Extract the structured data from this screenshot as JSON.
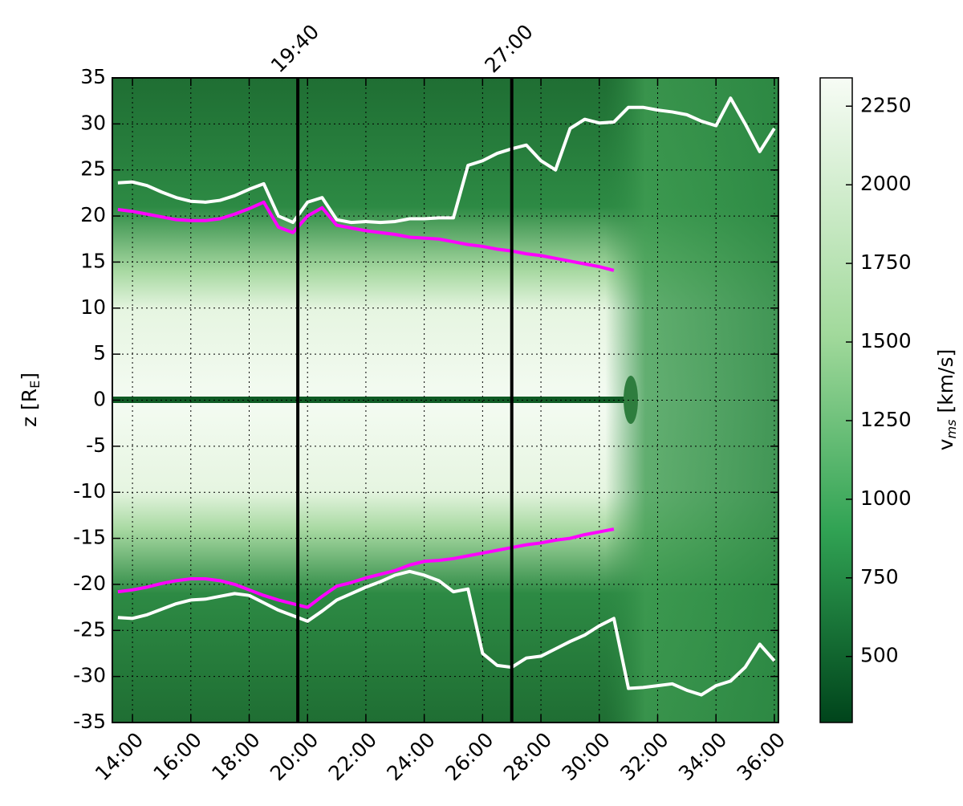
{
  "chart_data": {
    "type": "line",
    "ylabel": {
      "text": "z [R",
      "sub": "E",
      "end": "]"
    },
    "x": [
      13.5,
      14,
      14.5,
      15,
      15.5,
      16,
      16.5,
      17,
      17.5,
      18,
      18.5,
      19,
      19.5,
      20,
      20.5,
      21,
      21.5,
      22,
      22.5,
      23,
      23.5,
      24,
      24.5,
      25,
      25.5,
      26,
      26.5,
      27,
      27.5,
      28,
      28.5,
      29,
      29.5,
      30,
      30.5,
      31,
      31.5,
      32,
      32.5,
      33,
      33.5,
      34,
      34.5,
      35,
      35.5,
      36
    ],
    "series": [
      {
        "color": "#ffffff",
        "values": [
          23.6,
          23.7,
          23.3,
          22.6,
          22.0,
          21.6,
          21.5,
          21.7,
          22.2,
          22.9,
          23.5,
          20.0,
          19.3,
          21.5,
          22.0,
          19.6,
          19.3,
          19.4,
          19.3,
          19.4,
          19.7,
          19.7,
          19.8,
          19.8,
          25.5,
          26.0,
          26.8,
          27.3,
          27.7,
          26.0,
          25.0,
          29.5,
          30.5,
          30.1,
          30.2,
          31.8,
          31.8,
          31.5,
          31.3,
          31.0,
          30.3,
          29.8,
          32.8,
          30.0,
          27.0,
          29.5
        ]
      },
      {
        "color": "#ff00ff",
        "values": [
          20.7,
          20.5,
          20.2,
          19.9,
          19.6,
          19.5,
          19.5,
          19.7,
          20.2,
          20.8,
          21.5,
          18.8,
          18.2,
          20.0,
          20.9,
          19.0,
          18.7,
          18.4,
          18.2,
          18.0,
          17.7,
          17.6,
          17.5,
          17.2,
          16.9,
          16.7,
          16.4,
          16.2,
          15.9,
          15.7,
          15.4,
          15.1,
          14.8,
          14.5,
          14.1,
          null,
          null,
          null,
          null,
          null,
          null,
          null,
          null,
          null,
          null,
          null
        ]
      },
      {
        "color": "#ff00ff",
        "values": [
          -20.8,
          -20.6,
          -20.3,
          -19.9,
          -19.6,
          -19.4,
          -19.4,
          -19.6,
          -20.0,
          -20.6,
          -21.2,
          -21.7,
          -22.1,
          -22.5,
          -21.3,
          -20.2,
          -19.8,
          -19.3,
          -18.9,
          -18.5,
          -17.9,
          -17.5,
          -17.4,
          -17.2,
          -16.9,
          -16.6,
          -16.3,
          -16.0,
          -15.7,
          -15.5,
          -15.2,
          -15.0,
          -14.6,
          -14.3,
          -14.0,
          null,
          null,
          null,
          null,
          null,
          null,
          null,
          null,
          null,
          null,
          null
        ]
      },
      {
        "color": "#ffffff",
        "values": [
          -23.6,
          -23.7,
          -23.3,
          -22.7,
          -22.1,
          -21.7,
          -21.6,
          -21.3,
          -21.0,
          -21.2,
          -22.0,
          -22.8,
          -23.4,
          -24.0,
          -22.9,
          -21.7,
          -21.0,
          -20.3,
          -19.7,
          -19.0,
          -18.6,
          -19.0,
          -19.6,
          -20.8,
          -20.5,
          -27.5,
          -28.8,
          -29.0,
          -28.0,
          -27.8,
          -27.0,
          -26.2,
          -25.5,
          -24.5,
          -23.7,
          -31.3,
          -31.2,
          -31.0,
          -30.8,
          -31.5,
          -32.0,
          -31.0,
          -30.5,
          -29.0,
          -26.5,
          -28.3
        ]
      }
    ],
    "vlines": [
      {
        "x": 19.667,
        "label": "19:40",
        "color": "#000000"
      },
      {
        "x": 27,
        "label": "27:00",
        "color": "#000000"
      }
    ],
    "xlim": [
      13.31,
      36.14
    ],
    "xticks": [
      {
        "value": 14,
        "label": "14:00"
      },
      {
        "value": 16,
        "label": "16:00"
      },
      {
        "value": 18,
        "label": "18:00"
      },
      {
        "value": 20,
        "label": "20:00"
      },
      {
        "value": 22,
        "label": "22:00"
      },
      {
        "value": 24,
        "label": "24:00"
      },
      {
        "value": 26,
        "label": "26:00"
      },
      {
        "value": 28,
        "label": "28:00"
      },
      {
        "value": 30,
        "label": "30:00"
      },
      {
        "value": 32,
        "label": "32:00"
      },
      {
        "value": 34,
        "label": "34:00"
      },
      {
        "value": 36,
        "label": "36:00"
      }
    ],
    "ylim": [
      -35,
      35
    ],
    "yticks": [
      -35,
      -30,
      -25,
      -20,
      -15,
      -10,
      -5,
      0,
      5,
      10,
      15,
      20,
      25,
      30,
      35
    ],
    "grid": true,
    "colorbar": {
      "label": "v",
      "sub": "ms",
      "unit": "[km/s]",
      "lim": [
        290,
        2340
      ],
      "ticks": [
        500,
        750,
        1000,
        1250,
        1500,
        1750,
        2000,
        2250
      ],
      "colors": [
        "#00441b",
        "#f7fcf5"
      ]
    }
  }
}
